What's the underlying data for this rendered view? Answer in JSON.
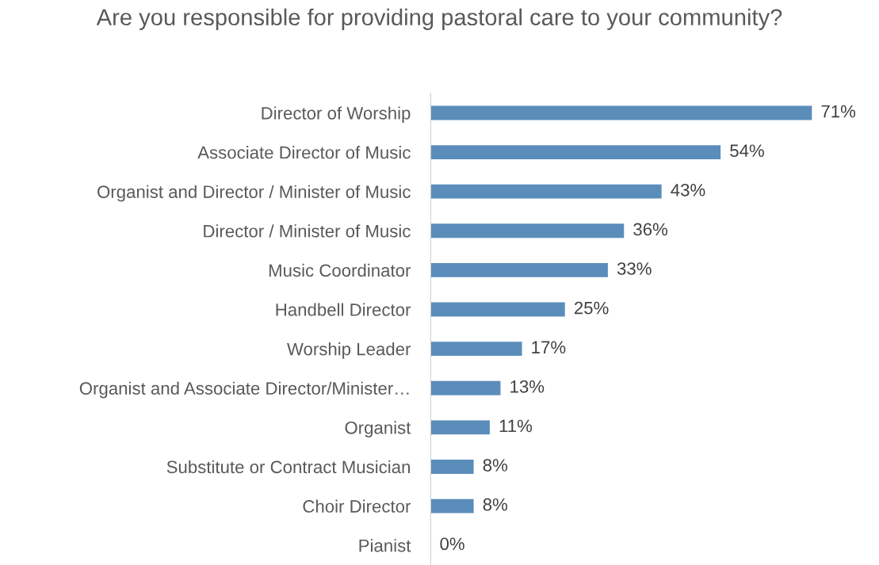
{
  "chart_data": {
    "type": "bar",
    "orientation": "horizontal",
    "title": "Are you responsible for providing pastoral care to your community?",
    "categories": [
      "Director of Worship",
      "Associate Director of Music",
      "Organist and Director / Minister of Music",
      "Director / Minister of Music",
      "Music Coordinator",
      "Handbell Director",
      "Worship Leader",
      "Organist and Associate Director/Minister…",
      "Organist",
      "Substitute or Contract Musician",
      "Choir Director",
      "Pianist"
    ],
    "values": [
      71,
      54,
      43,
      36,
      33,
      25,
      17,
      13,
      11,
      8,
      8,
      0
    ],
    "value_labels": [
      "71%",
      "54%",
      "43%",
      "36%",
      "33%",
      "25%",
      "17%",
      "13%",
      "11%",
      "8%",
      "8%",
      "0%"
    ],
    "color": "#5b8dbb",
    "grid": false,
    "legend": false
  }
}
